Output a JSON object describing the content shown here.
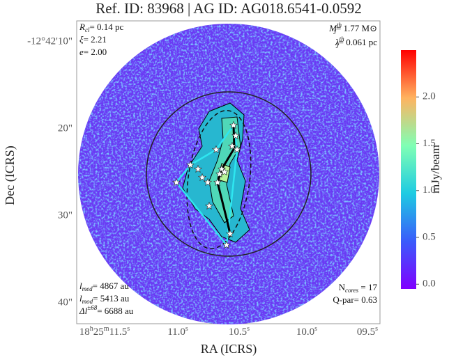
{
  "chart_data": {
    "type": "image",
    "title": "Ref. ID: 83968 | AG ID: AG018.6541-0.0592",
    "x_label": "RA (ICRS)",
    "y_label": "Dec (ICRS)",
    "x_tick_labels": [
      "18h25m11.5s",
      "11.0s",
      "10.5s",
      "10.0s",
      "09.5s"
    ],
    "y_tick_labels": [
      "-12°42'10\"",
      "20\"",
      "30\"",
      "40\""
    ],
    "colorbar": {
      "label": "mJy/beam",
      "ylim": [
        -0.05,
        2.5
      ],
      "yticks": [
        {
          "value": 0,
          "label": "0.0"
        },
        0.5,
        {
          "value": 1,
          "label": "1.0"
        },
        1.5,
        {
          "value": 2,
          "label": "2.0"
        }
      ]
    },
    "annotations": {
      "top_left": [
        {
          "sym": "R",
          "sub": "cl",
          "text": "= 0.14 pc"
        },
        {
          "sym": "ξ",
          "text": "= 2.21"
        },
        {
          "sym": "e",
          "text": "= 2.00"
        }
      ],
      "top_right": [
        {
          "sym": "M",
          "sup": "th",
          "sub": "J",
          "text": "= 1.77 M⊙"
        },
        {
          "sym": "λ",
          "sup": "th",
          "sub": "J",
          "text": "= 0.061 pc"
        }
      ],
      "bottom_left": [
        {
          "sym": "l",
          "sub": "med",
          "text": "= 4867 au"
        },
        {
          "sym": "l",
          "sub": "mod",
          "text": "= 5413 au"
        },
        {
          "sym": "Δl",
          "sup": "±68",
          "text": "= 6688 au"
        }
      ],
      "bottom_right": [
        {
          "lead": "N",
          "sub": "cores",
          "text": " = 17"
        },
        {
          "text": "Q-par= 0.63"
        }
      ]
    }
  }
}
